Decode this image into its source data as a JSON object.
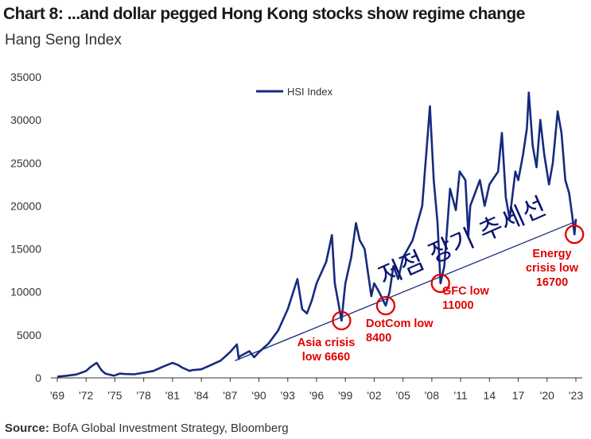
{
  "title": "Chart 8: ...and dollar pegged Hong Kong stocks show regime change",
  "subtitle": "Hang Seng Index",
  "source_label": "Source:",
  "source_text": "BofA Global Investment Strategy, Bloomberg",
  "overlay_text": "저점 장기 추세선",
  "colors": {
    "series": "#172a7f",
    "annotation": "#e00000",
    "trend": "#172a7f"
  },
  "chart_data": {
    "type": "line",
    "ylim": [
      0,
      35000
    ],
    "yticks": [
      0,
      5000,
      10000,
      15000,
      20000,
      25000,
      30000,
      35000
    ],
    "xlim": [
      1969,
      2024
    ],
    "xticks": [
      {
        "v": 1969,
        "label": "'69"
      },
      {
        "v": 1972,
        "label": "'72"
      },
      {
        "v": 1975,
        "label": "'75"
      },
      {
        "v": 1978,
        "label": "'78"
      },
      {
        "v": 1981,
        "label": "'81"
      },
      {
        "v": 1984,
        "label": "'84"
      },
      {
        "v": 1987,
        "label": "'87"
      },
      {
        "v": 1990,
        "label": "'90"
      },
      {
        "v": 1993,
        "label": "'93"
      },
      {
        "v": 1996,
        "label": "'96"
      },
      {
        "v": 1999,
        "label": "'99"
      },
      {
        "v": 2002,
        "label": "'02"
      },
      {
        "v": 2005,
        "label": "'05"
      },
      {
        "v": 2008,
        "label": "'08"
      },
      {
        "v": 2011,
        "label": "'11"
      },
      {
        "v": 2014,
        "label": "14"
      },
      {
        "v": 2017,
        "label": "17"
      },
      {
        "v": 2020,
        "label": "'20"
      },
      {
        "v": 2023,
        "label": "'23"
      }
    ],
    "legend": "top-center",
    "series": [
      {
        "name": "HSI Index",
        "points": [
          [
            1969,
            150
          ],
          [
            1970,
            250
          ],
          [
            1971,
            400
          ],
          [
            1972,
            800
          ],
          [
            1972.5,
            1300
          ],
          [
            1973.1,
            1750
          ],
          [
            1973.6,
            900
          ],
          [
            1974,
            500
          ],
          [
            1974.9,
            250
          ],
          [
            1975.5,
            500
          ],
          [
            1976,
            450
          ],
          [
            1977,
            420
          ],
          [
            1978,
            600
          ],
          [
            1979,
            800
          ],
          [
            1980,
            1300
          ],
          [
            1981,
            1750
          ],
          [
            1981.6,
            1500
          ],
          [
            1982,
            1200
          ],
          [
            1982.8,
            800
          ],
          [
            1983,
            900
          ],
          [
            1984,
            1000
          ],
          [
            1985,
            1500
          ],
          [
            1986,
            2000
          ],
          [
            1987,
            3000
          ],
          [
            1987.7,
            3900
          ],
          [
            1987.9,
            2200
          ],
          [
            1988,
            2500
          ],
          [
            1989,
            3100
          ],
          [
            1989.5,
            2400
          ],
          [
            1990,
            3000
          ],
          [
            1991,
            4000
          ],
          [
            1992,
            5500
          ],
          [
            1993,
            8000
          ],
          [
            1994,
            11500
          ],
          [
            1994.5,
            8000
          ],
          [
            1995,
            7500
          ],
          [
            1995.5,
            9000
          ],
          [
            1996,
            11000
          ],
          [
            1997,
            13500
          ],
          [
            1997.6,
            16600
          ],
          [
            1997.9,
            11000
          ],
          [
            1998.6,
            6660
          ],
          [
            1998.9,
            10000
          ],
          [
            1999,
            11000
          ],
          [
            1999.6,
            14000
          ],
          [
            2000.1,
            18000
          ],
          [
            2000.5,
            16000
          ],
          [
            2001,
            15000
          ],
          [
            2001.7,
            9500
          ],
          [
            2002,
            11000
          ],
          [
            2002.5,
            10000
          ],
          [
            2003.2,
            8400
          ],
          [
            2003.6,
            10000
          ],
          [
            2004,
            13000
          ],
          [
            2004.5,
            11500
          ],
          [
            2005,
            14000
          ],
          [
            2006,
            16000
          ],
          [
            2007,
            20000
          ],
          [
            2007.8,
            31600
          ],
          [
            2008.2,
            23000
          ],
          [
            2008.6,
            18000
          ],
          [
            2008.9,
            11000
          ],
          [
            2009.3,
            13000
          ],
          [
            2009.9,
            22000
          ],
          [
            2010.5,
            19500
          ],
          [
            2010.9,
            24000
          ],
          [
            2011.5,
            23000
          ],
          [
            2011.8,
            16500
          ],
          [
            2012,
            20000
          ],
          [
            2013,
            23000
          ],
          [
            2013.5,
            20000
          ],
          [
            2014,
            22500
          ],
          [
            2014.9,
            24000
          ],
          [
            2015.3,
            28500
          ],
          [
            2015.7,
            21000
          ],
          [
            2016.1,
            18500
          ],
          [
            2016.7,
            24000
          ],
          [
            2017,
            23000
          ],
          [
            2017.5,
            26000
          ],
          [
            2017.9,
            29000
          ],
          [
            2018.1,
            33200
          ],
          [
            2018.5,
            27000
          ],
          [
            2018.9,
            24500
          ],
          [
            2019.3,
            30000
          ],
          [
            2019.7,
            26000
          ],
          [
            2020.2,
            22500
          ],
          [
            2020.6,
            25000
          ],
          [
            2021.1,
            31000
          ],
          [
            2021.5,
            28500
          ],
          [
            2021.9,
            23000
          ],
          [
            2022.3,
            21500
          ],
          [
            2022.6,
            19000
          ],
          [
            2022.85,
            16700
          ],
          [
            2023.0,
            18500
          ]
        ]
      }
    ],
    "trendline": {
      "from": [
        1987.5,
        2000
      ],
      "to": [
        2023.0,
        18200
      ]
    },
    "annotations": [
      {
        "x": 1998.6,
        "y": 6660,
        "lines": [
          "Asia crisis",
          "low 6660"
        ]
      },
      {
        "x": 2003.2,
        "y": 8400,
        "lines": [
          "DotCom low",
          "8400"
        ]
      },
      {
        "x": 2008.9,
        "y": 11000,
        "lines": [
          "GFC low",
          "11000"
        ]
      },
      {
        "x": 2022.85,
        "y": 16700,
        "lines": [
          "Energy",
          "crisis low",
          "16700"
        ]
      }
    ]
  }
}
